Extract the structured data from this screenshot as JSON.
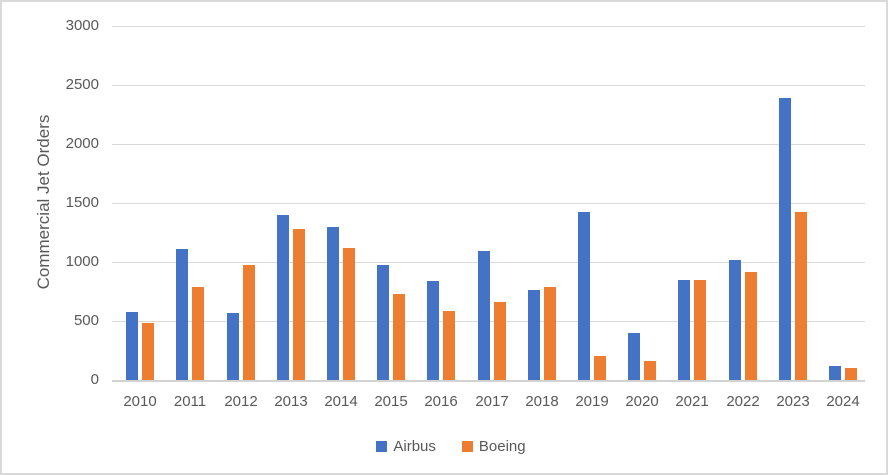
{
  "chart_data": {
    "type": "bar",
    "title": "",
    "xlabel": "",
    "ylabel": "Commercial Jet Orders",
    "ylim": [
      0,
      3000
    ],
    "yticks": [
      0,
      500,
      1000,
      1500,
      2000,
      2500,
      3000
    ],
    "grid": true,
    "legend_position": "bottom",
    "categories": [
      "2010",
      "2011",
      "2012",
      "2013",
      "2014",
      "2015",
      "2016",
      "2017",
      "2018",
      "2019",
      "2020",
      "2021",
      "2022",
      "2023",
      "2024"
    ],
    "series": [
      {
        "name": "Airbus",
        "color": "#4472C4",
        "values": [
          575,
          1110,
          565,
          1400,
          1300,
          975,
          840,
          1095,
          765,
          1420,
          400,
          845,
          1015,
          2390,
          120
        ]
      },
      {
        "name": "Boeing",
        "color": "#ED7D31",
        "values": [
          485,
          790,
          975,
          1280,
          1120,
          730,
          585,
          660,
          785,
          200,
          165,
          850,
          915,
          1420,
          105
        ]
      }
    ],
    "style": {
      "axis_text_color": "#595959",
      "gridline_color": "#D9D9D9",
      "baseline_color": "#D2D2D2",
      "background_color": "#FFFFFF",
      "border_color": "#D9D9D9"
    }
  }
}
